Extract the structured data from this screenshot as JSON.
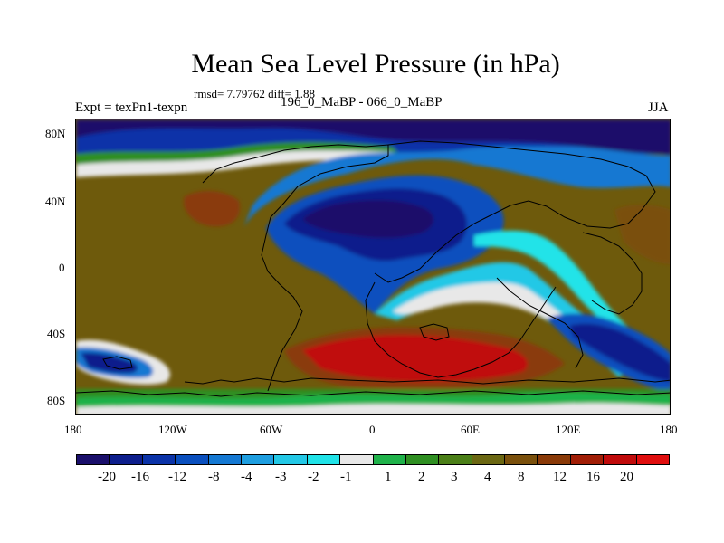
{
  "title": "Mean Sea Level Pressure (in hPa)",
  "stats": "rmsd= 7.79762 diff= 1.88",
  "expt_label": "Expt = texPn1-texpn",
  "period_label": "196_0_MaBP - 066_0_MaBP",
  "season_label": "JJA",
  "lat_ticks": [
    "80N",
    "40N",
    "0",
    "40S",
    "80S"
  ],
  "lon_ticks": [
    "180",
    "120W",
    "60W",
    "0",
    "60E",
    "120E",
    "180"
  ],
  "colorbar": {
    "colors": [
      "#1a0f6b",
      "#0d1e8c",
      "#0b33a8",
      "#0a4fbe",
      "#1478d2",
      "#1e9ee0",
      "#23c8e6",
      "#20e3e8",
      "#e8e8e8",
      "#1fb24a",
      "#2f8f22",
      "#4b7f18",
      "#6b6712",
      "#7a500c",
      "#8a3a08",
      "#a11e06",
      "#c00b0b",
      "#e00e0e"
    ],
    "labels": [
      "-20",
      "-16",
      "-12",
      "-8",
      "-4",
      "-3",
      "-2",
      "-1",
      "1",
      "2",
      "3",
      "4",
      "8",
      "12",
      "16",
      "20"
    ]
  }
}
